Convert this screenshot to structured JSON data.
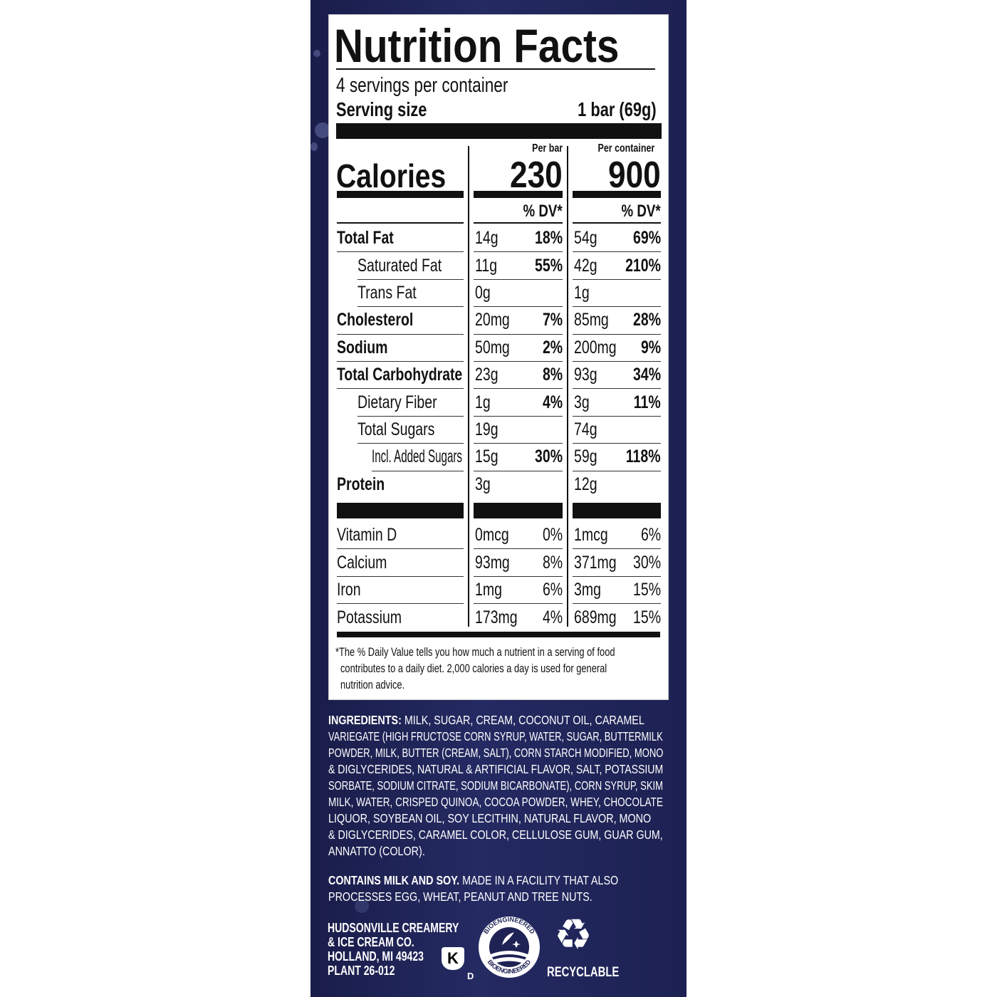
{
  "title": "Nutrition Facts",
  "servings": "4 servings per container",
  "serving_size_label": "Serving size",
  "serving_size_value": "1 bar (69g)",
  "calories_label": "Calories",
  "columns": [
    {
      "header": "Per bar",
      "calories": "230",
      "dv_header": "% DV*"
    },
    {
      "header": "Per container",
      "calories": "900",
      "dv_header": "% DV*"
    }
  ],
  "nutrients": [
    {
      "name": "Total Fat",
      "bold": true,
      "indent": 0,
      "bar": [
        "14g",
        "18%"
      ],
      "container": [
        "54g",
        "69%"
      ]
    },
    {
      "name": "Saturated Fat",
      "bold": false,
      "indent": 1,
      "bar": [
        "11g",
        "55%"
      ],
      "container": [
        "42g",
        "210%"
      ]
    },
    {
      "name": "Trans Fat",
      "bold": false,
      "indent": 1,
      "bar": [
        "0g",
        ""
      ],
      "container": [
        "1g",
        ""
      ]
    },
    {
      "name": "Cholesterol",
      "bold": true,
      "indent": 0,
      "bar": [
        "20mg",
        "7%"
      ],
      "container": [
        "85mg",
        "28%"
      ]
    },
    {
      "name": "Sodium",
      "bold": true,
      "indent": 0,
      "bar": [
        "50mg",
        "2%"
      ],
      "container": [
        "200mg",
        "9%"
      ]
    },
    {
      "name": "Total Carbohydrate",
      "bold": true,
      "indent": 0,
      "bar": [
        "23g",
        "8%"
      ],
      "container": [
        "93g",
        "34%"
      ]
    },
    {
      "name": "Dietary Fiber",
      "bold": false,
      "indent": 1,
      "bar": [
        "1g",
        "4%"
      ],
      "container": [
        "3g",
        "11%"
      ]
    },
    {
      "name": "Total Sugars",
      "bold": false,
      "indent": 1,
      "bar": [
        "19g",
        ""
      ],
      "container": [
        "74g",
        ""
      ]
    },
    {
      "name": "Incl. Added Sugars",
      "bold": false,
      "indent": 2,
      "bar": [
        "15g",
        "30%"
      ],
      "container": [
        "59g",
        "118%"
      ]
    },
    {
      "name": "Protein",
      "bold": true,
      "indent": 0,
      "bar": [
        "3g",
        ""
      ],
      "container": [
        "12g",
        ""
      ]
    }
  ],
  "vitamins": [
    {
      "name": "Vitamin D",
      "bar": [
        "0mcg",
        "0%"
      ],
      "container": [
        "1mcg",
        "6%"
      ]
    },
    {
      "name": "Calcium",
      "bar": [
        "93mg",
        "8%"
      ],
      "container": [
        "371mg",
        "30%"
      ]
    },
    {
      "name": "Iron",
      "bar": [
        "1mg",
        "6%"
      ],
      "container": [
        "3mg",
        "15%"
      ]
    },
    {
      "name": "Potassium",
      "bar": [
        "173mg",
        "4%"
      ],
      "container": [
        "689mg",
        "15%"
      ]
    }
  ],
  "footnote": [
    "*The % Daily Value tells you how much a nutrient in a serving of food",
    "contributes to a daily diet. 2,000 calories a day is used for general",
    "nutrition advice."
  ],
  "ingredients": {
    "label": "INGREDIENTS:",
    "lines": [
      " MILK, SUGAR, CREAM, COCONUT OIL, CARAMEL",
      "VARIEGATE (HIGH FRUCTOSE CORN SYRUP, WATER, SUGAR, BUTTERMILK",
      "POWDER, MILK, BUTTER (CREAM, SALT), CORN STARCH MODIFIED, MONO",
      "& DIGLYCERIDES, NATURAL & ARTIFICIAL FLAVOR, SALT, POTASSIUM",
      "SORBATE, SODIUM CITRATE, SODIUM BICARBONATE), CORN SYRUP, SKIM",
      "MILK, WATER, CRISPED QUINOA, COCOA POWDER, WHEY, CHOCOLATE",
      "LIQUOR, SOYBEAN OIL, SOY LECITHIN, NATURAL FLAVOR, MONO",
      "& DIGLYCERIDES, CARAMEL COLOR, CELLULOSE GUM, GUAR GUM,",
      "ANNATTO (COLOR)."
    ]
  },
  "contains": {
    "label": "CONTAINS MILK AND SOY.",
    "text": " MADE IN A FACILITY THAT ALSO",
    "line2": "PROCESSES EGG, WHEAT, PEANUT AND TREE NUTS."
  },
  "manufacturer": [
    "HUDSONVILLE CREAMERY",
    "& ICE CREAM CO.",
    "HOLLAND, MI 49423",
    "PLANT 26-012"
  ],
  "kosher": {
    "letter": "K",
    "sub": "D"
  },
  "bioengineered": "BIOENGINEERED",
  "recyclable": "RECYCLABLE",
  "colors": {
    "panel": "#1e2254",
    "label": "#ffffff",
    "ink": "#111111"
  }
}
